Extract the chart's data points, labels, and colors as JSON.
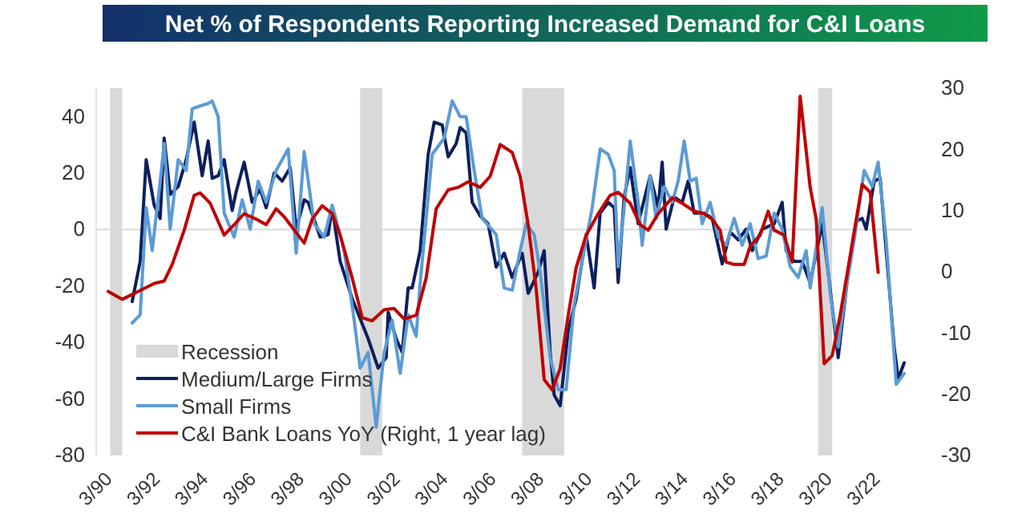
{
  "chart_data": {
    "type": "line",
    "title": "Net % of Respondents Reporting Increased Demand for C&I Loans",
    "xlim": [
      "1990-01",
      "2024-01"
    ],
    "xticks": [
      {
        "value": "1990-03",
        "label": "3/90"
      },
      {
        "value": "1992-03",
        "label": "3/92"
      },
      {
        "value": "1994-03",
        "label": "3/94"
      },
      {
        "value": "1996-03",
        "label": "3/96"
      },
      {
        "value": "1998-03",
        "label": "3/98"
      },
      {
        "value": "2000-03",
        "label": "3/00"
      },
      {
        "value": "2002-03",
        "label": "3/02"
      },
      {
        "value": "2004-03",
        "label": "3/04"
      },
      {
        "value": "2006-03",
        "label": "3/06"
      },
      {
        "value": "2008-03",
        "label": "3/08"
      },
      {
        "value": "2010-03",
        "label": "3/10"
      },
      {
        "value": "2012-03",
        "label": "3/12"
      },
      {
        "value": "2014-03",
        "label": "3/14"
      },
      {
        "value": "2016-03",
        "label": "3/16"
      },
      {
        "value": "2018-03",
        "label": "3/18"
      },
      {
        "value": "2020-03",
        "label": "3/20"
      },
      {
        "value": "2022-03",
        "label": "3/22"
      }
    ],
    "ylim": [
      -80,
      50
    ],
    "yticks": [
      -80,
      -60,
      -40,
      -20,
      0,
      20,
      40
    ],
    "y2lim": [
      -30,
      30
    ],
    "y2ticks": [
      -30,
      -20,
      -10,
      0,
      10,
      20,
      30
    ],
    "grid": false,
    "legend": "bottom left",
    "ref_lines": [
      {
        "axis": "y",
        "value": 0,
        "color": "#d9d9d9"
      }
    ],
    "bands": [
      {
        "axis": "x",
        "from": "1990-08",
        "to": "1991-02",
        "label": "Recession",
        "color": "#d9d9d9"
      },
      {
        "axis": "x",
        "from": "2001-01",
        "to": "2001-12",
        "color": "#d9d9d9"
      },
      {
        "axis": "x",
        "from": "2007-10",
        "to": "2009-07",
        "color": "#d9d9d9"
      },
      {
        "axis": "x",
        "from": "2020-02",
        "to": "2020-09",
        "color": "#d9d9d9"
      }
    ],
    "series": [
      {
        "name": "Medium/Large Firms",
        "color": "#0d1f5c",
        "x": [
          "1991-07",
          "1991-11",
          "1992-02",
          "1992-06",
          "1992-09",
          "1992-11",
          "1993-02",
          "1993-06",
          "1993-10",
          "1994-02",
          "1994-06",
          "1994-09",
          "1994-11",
          "1995-02",
          "1995-05",
          "1995-09",
          "1995-11",
          "1996-03",
          "1996-07",
          "1996-11",
          "1997-02",
          "1997-06",
          "1997-10",
          "1998-02",
          "1998-05",
          "1998-09",
          "1998-11",
          "1999-05",
          "1999-09",
          "1999-11",
          "2000-03",
          "2000-09",
          "2001-05",
          "2001-10",
          "2002-02",
          "2002-03",
          "2002-07",
          "2002-10",
          "2003-01",
          "2003-03",
          "2003-07",
          "2003-11",
          "2004-02",
          "2004-06",
          "2004-09",
          "2005-01",
          "2005-03",
          "2005-06",
          "2005-09",
          "2006-01",
          "2006-05",
          "2006-09",
          "2007-01",
          "2007-05",
          "2007-10",
          "2008-01",
          "2008-06",
          "2008-09",
          "2008-12",
          "2009-02",
          "2009-05",
          "2009-09",
          "2010-01",
          "2010-06",
          "2010-10",
          "2011-01",
          "2011-05",
          "2011-08",
          "2011-10",
          "2012-01",
          "2012-04",
          "2012-08",
          "2012-10",
          "2013-02",
          "2013-06",
          "2013-08",
          "2013-10",
          "2014-02",
          "2014-06",
          "2014-09",
          "2014-12",
          "2015-05",
          "2015-09",
          "2016-02",
          "2016-06",
          "2016-10",
          "2017-02",
          "2017-05",
          "2017-10",
          "2018-04",
          "2018-08",
          "2018-10",
          "2019-02",
          "2019-06",
          "2019-10",
          "2020-04",
          "2020-07",
          "2020-12",
          "2021-05",
          "2021-09",
          "2021-12",
          "2022-02",
          "2022-06",
          "2022-09",
          "2022-12",
          "2023-04",
          "2023-06",
          "2023-09"
        ],
        "values": [
          -25.5,
          -11.3,
          24.7,
          8.6,
          3.9,
          32.3,
          12.4,
          15.2,
          24.7,
          38,
          19,
          31.3,
          18.1,
          19,
          24.7,
          6.7,
          13.4,
          23.8,
          9.6,
          14.3,
          7.7,
          20,
          17.1,
          21.9,
          0.1,
          10.5,
          9.6,
          -2.7,
          -1.8,
          7.7,
          -11.3,
          -24.5,
          -38.7,
          -49.1,
          -45.4,
          -29.3,
          -38.7,
          -43.5,
          -20.7,
          -20.7,
          -7.5,
          26.6,
          38,
          37,
          25.7,
          30.4,
          36.1,
          34.2,
          9.6,
          4.8,
          2,
          -13.3,
          -8.4,
          -17,
          -8.4,
          -22.6,
          -15.1,
          -7.5,
          -43.5,
          -58.6,
          -62.4,
          -35.9,
          -24.5,
          -1.8,
          -20.7,
          5.8,
          9.6,
          7.7,
          -18.8,
          11.5,
          21.9,
          2,
          7.7,
          19,
          7.7,
          23.8,
          0.1,
          11.5,
          9.6,
          17.1,
          5.8,
          5.8,
          3.9,
          -12.2,
          -0.9,
          -3.7,
          0.1,
          -7.5,
          0.1,
          2,
          9.6,
          -7.5,
          -11.3,
          -11.3,
          -18.9,
          2,
          -15.1,
          -45.4,
          -15.1,
          2.9,
          3.9,
          0.1,
          17.1,
          18.1,
          -7.5,
          -41.6,
          -52.9,
          -47.2
        ]
      },
      {
        "name": "Small Firms",
        "color": "#5b9bd5",
        "x": [
          "1991-07",
          "1991-11",
          "1992-02",
          "1992-05",
          "1992-09",
          "1992-11",
          "1993-02",
          "1993-06",
          "1993-10",
          "1994-01",
          "1994-05",
          "1994-09",
          "1994-11",
          "1995-02",
          "1995-05",
          "1995-10",
          "1996-02",
          "1996-06",
          "1996-10",
          "1997-02",
          "1997-07",
          "1998-01",
          "1998-05",
          "1998-09",
          "1999-02",
          "1999-07",
          "1999-11",
          "2000-05",
          "2000-10",
          "2001-01",
          "2001-05",
          "2001-09",
          "2002-01",
          "2002-05",
          "2002-09",
          "2003-01",
          "2003-05",
          "2003-07",
          "2004-01",
          "2004-05",
          "2004-07",
          "2004-11",
          "2005-03",
          "2005-06",
          "2005-10",
          "2006-02",
          "2006-09",
          "2007-01",
          "2007-05",
          "2007-09",
          "2007-12",
          "2008-04",
          "2008-07",
          "2008-12",
          "2009-04",
          "2009-08",
          "2009-12",
          "2010-04",
          "2010-09",
          "2011-01",
          "2011-05",
          "2011-08",
          "2011-10",
          "2012-01",
          "2012-04",
          "2012-08",
          "2012-10",
          "2013-02",
          "2013-05",
          "2013-09",
          "2014-01",
          "2014-04",
          "2014-07",
          "2014-10",
          "2015-01",
          "2015-04",
          "2015-08",
          "2015-12",
          "2016-04",
          "2016-08",
          "2016-12",
          "2017-04",
          "2017-08",
          "2017-12",
          "2018-04",
          "2018-08",
          "2018-12",
          "2019-04",
          "2019-08",
          "2019-10",
          "2020-04",
          "2020-08",
          "2020-12",
          "2021-04",
          "2021-08",
          "2022-01",
          "2022-05",
          "2022-08",
          "2022-12",
          "2023-05",
          "2023-09"
        ],
        "values": [
          -33.1,
          -30.2,
          7.7,
          -7.5,
          17.1,
          30.4,
          0.1,
          24.7,
          20.9,
          42.7,
          43.7,
          44.6,
          45.5,
          39.9,
          5.8,
          -2.7,
          10.5,
          0.1,
          17.1,
          9.6,
          20.9,
          28.5,
          -8.4,
          27.6,
          2,
          -2.7,
          8.6,
          -7.5,
          -32.1,
          -49.1,
          -43.5,
          -70,
          -43.5,
          -32.1,
          -51,
          -30.2,
          -37.8,
          -18.9,
          26.6,
          30.4,
          32.3,
          45.5,
          39.9,
          39.9,
          20.9,
          3.9,
          -1.8,
          -20.7,
          -21.5,
          -7.5,
          2,
          -1.8,
          -15.1,
          -45.4,
          -56.7,
          -56.7,
          -26.4,
          -11.3,
          7.7,
          28.5,
          26.6,
          20.9,
          -13.2,
          7.7,
          31.3,
          9.6,
          -5.6,
          19,
          3.9,
          15.2,
          9.6,
          17.1,
          31.3,
          17.1,
          18.1,
          2,
          9.6,
          -2.7,
          -5.6,
          3.9,
          -5.6,
          2,
          -10.3,
          -9.4,
          5.8,
          0.1,
          -13.2,
          -17,
          -7.5,
          -20.7,
          7.7,
          -22.6,
          -41.6,
          -20.7,
          -3.7,
          20.9,
          15.2,
          23.8,
          -3.7,
          -54.8,
          -51
        ]
      },
      {
        "name": "C&I Bank Loans YoY (Right, 1 year lag)",
        "color": "#c00000",
        "axis": "y2",
        "x": [
          "1990-07",
          "1991-02",
          "1991-10",
          "1992-06",
          "1992-11",
          "1993-03",
          "1993-09",
          "1994-02",
          "1994-05",
          "1994-10",
          "1995-05",
          "1995-10",
          "1996-03",
          "1996-09",
          "1997-02",
          "1997-07",
          "1997-11",
          "1998-05",
          "1998-09",
          "1999-01",
          "1999-06",
          "1999-11",
          "2000-03",
          "2000-09",
          "2001-02",
          "2001-07",
          "2002-01",
          "2002-06",
          "2002-11",
          "2003-05",
          "2003-10",
          "2004-03",
          "2004-09",
          "2005-02",
          "2005-07",
          "2006-01",
          "2006-06",
          "2006-11",
          "2007-05",
          "2007-09",
          "2008-01",
          "2008-05",
          "2008-09",
          "2009-01",
          "2009-05",
          "2009-09",
          "2010-01",
          "2010-06",
          "2010-12",
          "2011-06",
          "2011-10",
          "2012-04",
          "2012-09",
          "2013-01",
          "2013-06",
          "2014-01",
          "2014-06",
          "2014-12",
          "2015-05",
          "2015-09",
          "2016-01",
          "2016-04",
          "2016-08",
          "2017-01",
          "2017-04",
          "2017-09",
          "2018-01",
          "2018-04",
          "2018-09",
          "2019-01",
          "2019-05",
          "2019-10",
          "2020-01",
          "2020-05",
          "2020-09",
          "2021-01",
          "2021-05",
          "2021-12",
          "2022-04",
          "2022-08"
        ],
        "values": [
          -3.2,
          -4.5,
          -3.2,
          -1.9,
          -1.5,
          1.2,
          6.8,
          12.5,
          12.9,
          11.2,
          6,
          7.7,
          9.5,
          8.6,
          7.7,
          10.3,
          9,
          6.4,
          4.7,
          8.6,
          10.8,
          9.5,
          6,
          -1,
          -7.5,
          -8,
          -6.2,
          -6,
          -7.7,
          -7.1,
          -1,
          10.3,
          13.4,
          13.8,
          14.7,
          13.8,
          15.6,
          20.8,
          19.5,
          15.6,
          7.7,
          -2.8,
          -17.6,
          -19.3,
          -15.8,
          -7.1,
          0.7,
          6,
          9.5,
          12.5,
          13,
          11.2,
          7.7,
          6.8,
          9.5,
          12.1,
          11.2,
          9.9,
          9.5,
          8.6,
          6.8,
          1.6,
          1.2,
          1.2,
          4.2,
          6,
          9.9,
          6.8,
          6,
          1.6,
          28.7,
          13.8,
          8.6,
          -15,
          -13.7,
          -7.1,
          0.7,
          14.3,
          13,
          -0.1
        ]
      }
    ]
  }
}
